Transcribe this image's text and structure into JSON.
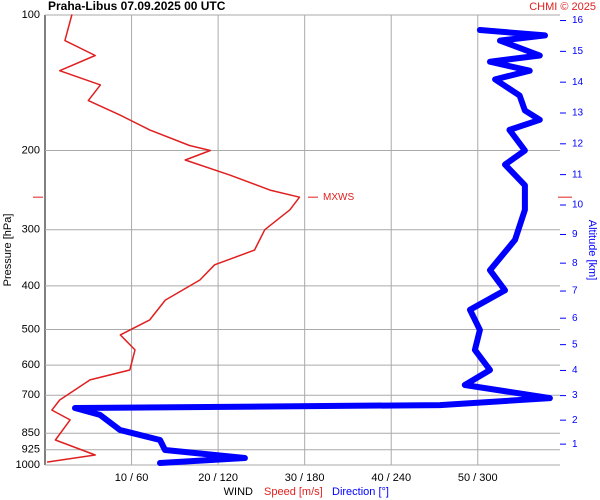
{
  "chart_data": {
    "type": "wind-profile",
    "title": "Praha-Libus    07.09.2025 00 UTC",
    "credit": "CHMI © 2025",
    "y_label": "Pressure [hPa]",
    "y2_label": "Altitude [km]",
    "x_label": "WIND",
    "log_y": true,
    "grid": true,
    "ylim": [
      100,
      1000
    ],
    "yticks": [
      100,
      200,
      300,
      400,
      500,
      600,
      700,
      850,
      925,
      1000
    ],
    "xlim": [
      0,
      59.5
    ],
    "x2lim": [
      0,
      357
    ],
    "xticks": [
      {
        "value": 10,
        "label": "10 / 60"
      },
      {
        "value": 20,
        "label": "20 / 120"
      },
      {
        "value": 30,
        "label": "30 / 180"
      },
      {
        "value": 40,
        "label": "40 / 240"
      },
      {
        "value": 50,
        "label": "50 / 300"
      }
    ],
    "y2ticks": [
      1,
      2,
      3,
      4,
      5,
      6,
      7,
      8,
      9,
      10,
      11,
      12,
      13,
      14,
      15,
      16
    ],
    "annotation": {
      "text": "MXWS",
      "pressure": 254
    },
    "series": [
      {
        "name": "Speed [m/s]",
        "color": "#e02020",
        "pressure": [
          100,
          114,
          123,
          133,
          143,
          155,
          167,
          180,
          195,
          200,
          210,
          227,
          245,
          254,
          271,
          300,
          333,
          359,
          388,
          430,
          476,
          514,
          555,
          615,
          647,
          717,
          755,
          794,
          880,
          950,
          985
        ],
        "values": [
          3.1,
          2.3,
          5.8,
          1.7,
          6.4,
          5.0,
          8.7,
          12.1,
          16.7,
          19.1,
          16.2,
          21.4,
          26.0,
          29.4,
          28.3,
          25.4,
          24.2,
          19.6,
          17.9,
          13.9,
          12.1,
          8.7,
          10.4,
          9.8,
          5.2,
          1.7,
          0.8,
          2.9,
          1.2,
          5.8,
          0.3
        ]
      },
      {
        "name": "Direction [°]",
        "color": "#0000ff",
        "axis": "x2",
        "pressure": [
          108,
          111,
          114,
          123,
          127,
          133,
          139,
          151,
          163,
          171,
          180,
          200,
          215,
          239,
          271,
          316,
          369,
          409,
          452,
          501,
          555,
          615,
          664,
          710,
          736,
          747,
          774,
          836,
          880,
          926,
          965,
          990
        ],
        "values": [
          301.5,
          346.6,
          315.4,
          343,
          308.5,
          336,
          312,
          329,
          332.7,
          343,
          322,
          332.7,
          318.9,
          332.7,
          332.7,
          325.8,
          308.5,
          318.9,
          294.6,
          301.5,
          298,
          308.5,
          291,
          350,
          273.8,
          20.8,
          38.1,
          52,
          79.7,
          83.2,
          138.6,
          79.7
        ]
      }
    ]
  }
}
